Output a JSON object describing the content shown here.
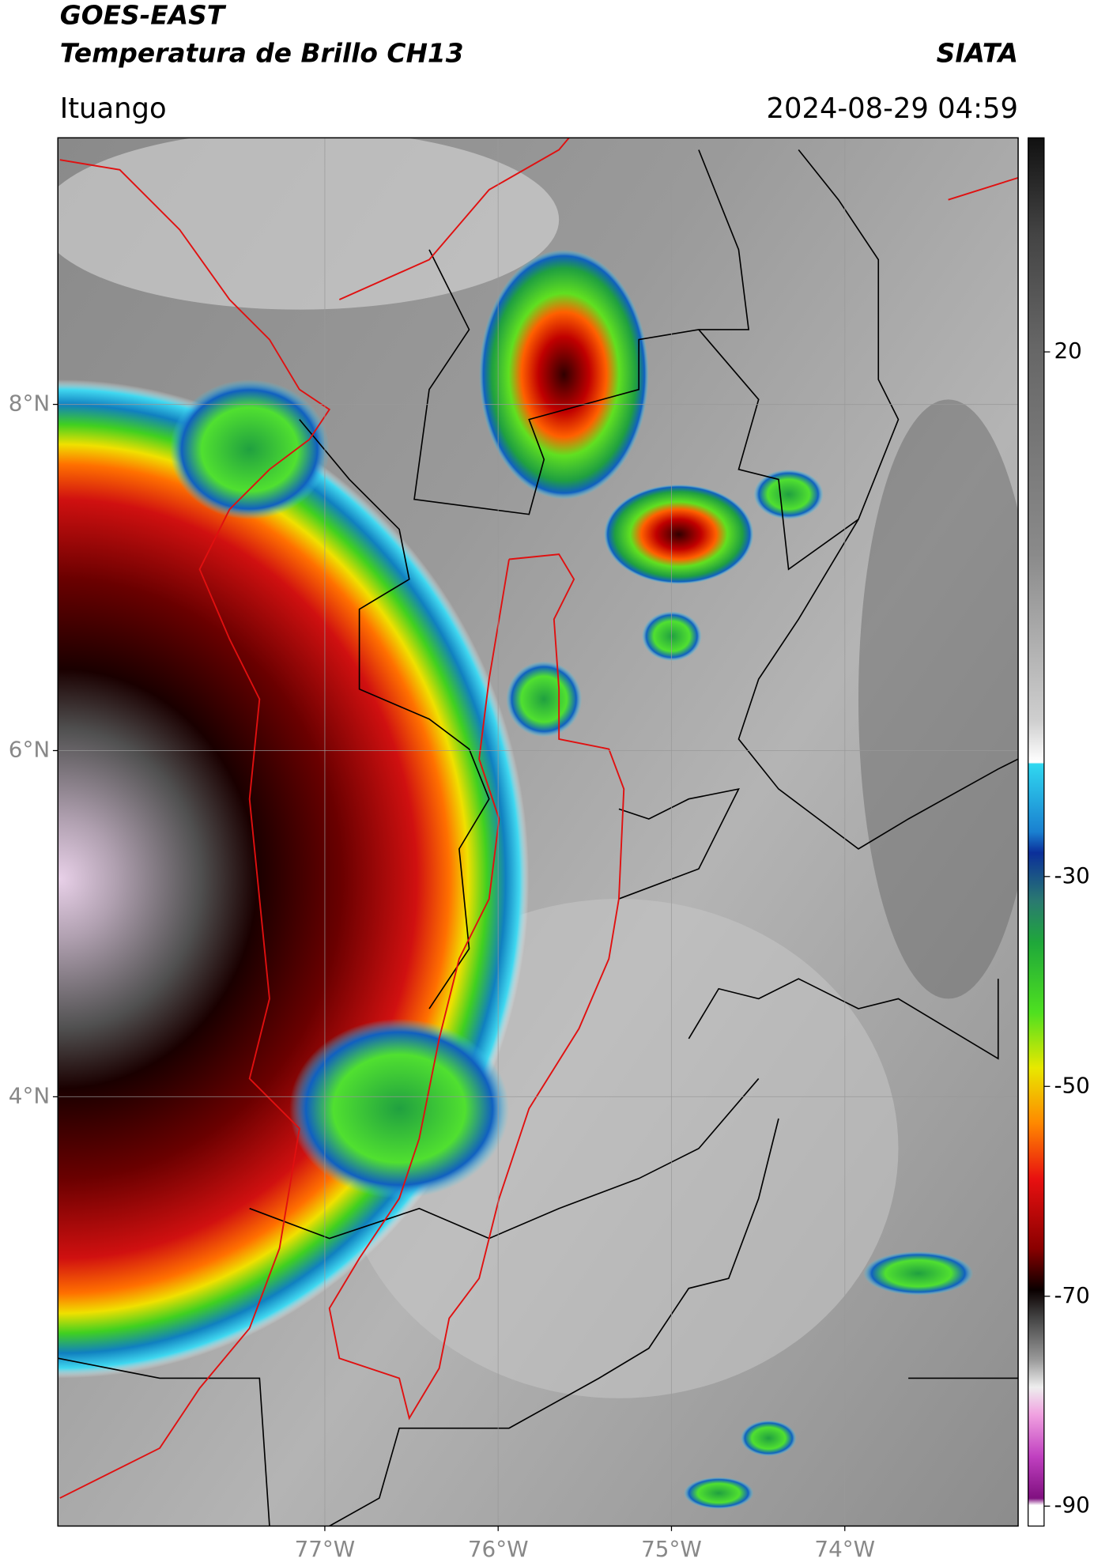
{
  "header": {
    "title": "GOES-EAST",
    "subtitle": "Temperatura de Brillo CH13",
    "source": "SIATA",
    "location": "Ituango",
    "datetime": "2024-08-29 04:59"
  },
  "map": {
    "latlim": [
      1.52,
      9.54
    ],
    "lonlim": [
      -78.54,
      -73.0
    ],
    "grid": true,
    "lat_ticks": [
      {
        "value": 8,
        "label": "8°N"
      },
      {
        "value": 6,
        "label": "6°N"
      },
      {
        "value": 4,
        "label": "4°N"
      }
    ],
    "lon_ticks": [
      {
        "value": -77,
        "label": "77°W"
      },
      {
        "value": -76,
        "label": "76°W"
      },
      {
        "value": -75,
        "label": "75°W"
      },
      {
        "value": -74,
        "label": "74°W"
      }
    ]
  },
  "colorbar": {
    "lim": [
      -91.9,
      40.4
    ],
    "ticks": [
      20,
      -30,
      -50,
      -70,
      -90
    ]
  }
}
